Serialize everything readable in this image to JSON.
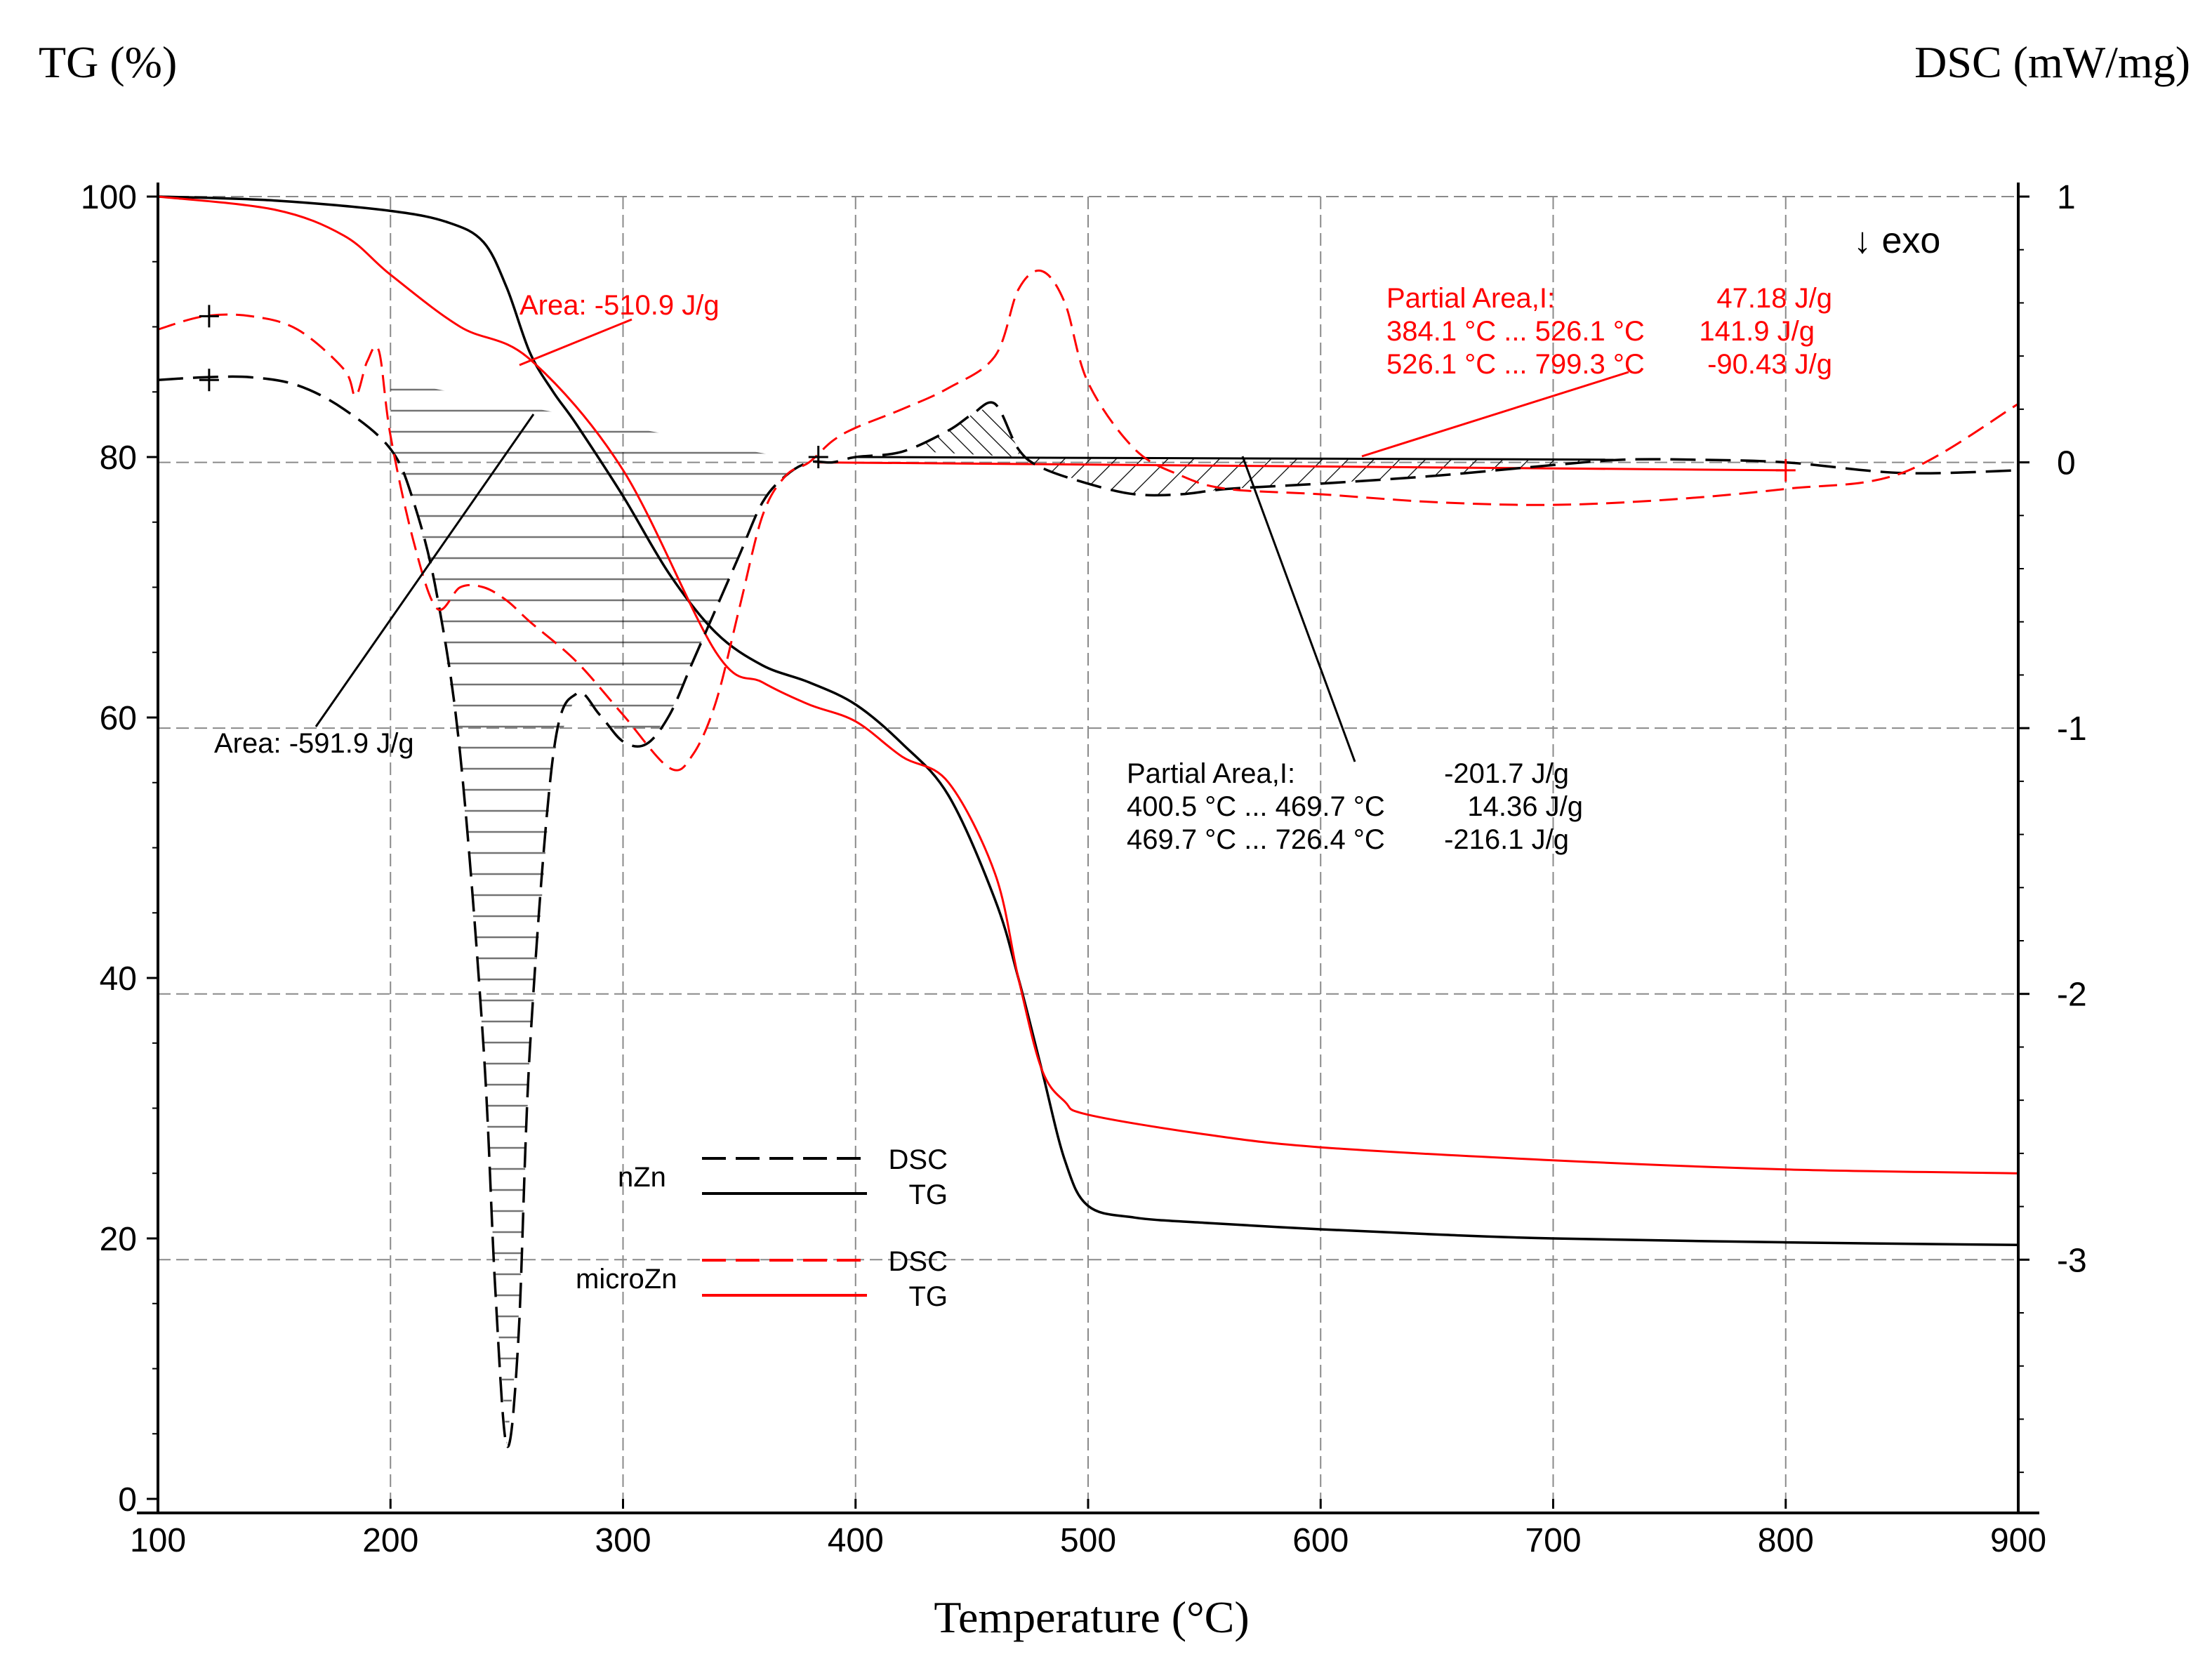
{
  "chart_data": {
    "type": "line",
    "title": "",
    "xlabel": "Temperature (°C)",
    "ylabel_left": "TG (%)",
    "ylabel_right": "DSC (mW/mg)",
    "x_ticks": [
      "100",
      "200",
      "300",
      "400",
      "500",
      "600",
      "700",
      "800",
      "900"
    ],
    "y_left_ticks": [
      "100",
      "80",
      "60",
      "40",
      "20",
      "0"
    ],
    "y_right_ticks": [
      "1",
      "0",
      "-1",
      "-2",
      "-3"
    ],
    "xlim": [
      100,
      900
    ],
    "ylim_left": [
      0,
      100
    ],
    "ylim_right": [
      -3.9,
      1.0
    ],
    "grid": true,
    "exo_label": "↓ exo",
    "colors": {
      "nZn": "#000000",
      "microZn": "#ff0000",
      "grid": "#8a8a8a"
    },
    "legend": {
      "groups": [
        {
          "name": "nZn",
          "entries": [
            {
              "label": "DSC",
              "style": "dashed"
            },
            {
              "label": "TG",
              "style": "solid"
            }
          ]
        },
        {
          "name": "microZn",
          "entries": [
            {
              "label": "DSC",
              "style": "dashed"
            },
            {
              "label": "TG",
              "style": "solid"
            }
          ]
        }
      ]
    },
    "annotations": {
      "area_red": "Area: -510.9 J/g",
      "area_black": "Area: -591.9 J/g",
      "partial_red": [
        "Partial Area,I:",
        "47.18 J/g",
        "384.1 °C ... 526.1 °C",
        "141.9 J/g",
        "526.1 °C ... 799.3 °C",
        "-90.43 J/g"
      ],
      "partial_black": [
        "Partial Area,I:",
        "-201.7 J/g",
        "400.5 °C ... 469.7 °C",
        "14.36 J/g",
        "469.7 °C ... 726.4 °C",
        "-216.1 J/g"
      ]
    },
    "series": [
      {
        "name": "nZn TG",
        "axis": "left",
        "style": "solid",
        "color": "#000000",
        "x": [
          100,
          150,
          200,
          225,
          240,
          250,
          260,
          270,
          280,
          300,
          320,
          340,
          360,
          380,
          400,
          420,
          440,
          460,
          470,
          480,
          490,
          500,
          520,
          550,
          600,
          650,
          700,
          800,
          900
        ],
        "y": [
          100,
          99.7,
          98.9,
          98,
          96.5,
          93,
          88,
          85,
          82.5,
          77,
          71,
          66.5,
          64,
          62.7,
          61,
          58,
          54,
          46,
          40,
          33,
          26,
          22.5,
          21.6,
          21.2,
          20.7,
          20.3,
          20,
          19.7,
          19.5
        ]
      },
      {
        "name": "microZn TG",
        "axis": "left",
        "style": "solid",
        "color": "#ff0000",
        "x": [
          100,
          150,
          180,
          200,
          230,
          260,
          300,
          340,
          360,
          380,
          400,
          420,
          440,
          460,
          470,
          480,
          490,
          500,
          550,
          600,
          700,
          800,
          900
        ],
        "y": [
          100,
          99,
          97,
          94,
          90,
          87.5,
          79,
          65,
          62.7,
          61,
          59.7,
          57,
          55,
          48,
          40,
          33,
          30.5,
          29.5,
          28,
          27,
          26,
          25.3,
          25
        ]
      },
      {
        "name": "nZn DSC",
        "axis": "right",
        "style": "dashed",
        "color": "#000000",
        "x": [
          100,
          120,
          140,
          160,
          180,
          200,
          210,
          220,
          230,
          240,
          245,
          250,
          255,
          260,
          270,
          280,
          290,
          300,
          310,
          320,
          330,
          340,
          350,
          360,
          370,
          380,
          390,
          400,
          420,
          440,
          450,
          460,
          470,
          480,
          500,
          520,
          540,
          560,
          600,
          650,
          700,
          730,
          760,
          800,
          850,
          900
        ],
        "y": [
          0.31,
          0.32,
          0.32,
          0.29,
          0.2,
          0.05,
          -0.15,
          -0.5,
          -1.1,
          -2.2,
          -3.1,
          -3.7,
          -3.3,
          -2.2,
          -1.1,
          -0.87,
          -0.95,
          -1.05,
          -1.06,
          -0.95,
          -0.75,
          -0.55,
          -0.35,
          -0.15,
          -0.05,
          0.0,
          0.0,
          0.02,
          0.04,
          0.12,
          0.18,
          0.22,
          0.05,
          -0.02,
          -0.08,
          -0.12,
          -0.12,
          -0.1,
          -0.08,
          -0.05,
          -0.01,
          0.01,
          0.01,
          0.0,
          -0.04,
          -0.03
        ]
      },
      {
        "name": "microZn DSC",
        "axis": "right",
        "style": "dashed",
        "color": "#ff0000",
        "x": [
          100,
          120,
          140,
          160,
          180,
          185,
          190,
          195,
          200,
          210,
          220,
          230,
          240,
          250,
          260,
          280,
          300,
          320,
          330,
          340,
          350,
          360,
          370,
          380,
          390,
          400,
          420,
          440,
          460,
          470,
          480,
          490,
          500,
          520,
          540,
          560,
          600,
          650,
          700,
          750,
          800,
          850,
          900
        ],
        "y": [
          0.5,
          0.55,
          0.55,
          0.5,
          0.35,
          0.25,
          0.38,
          0.42,
          0.1,
          -0.3,
          -0.55,
          -0.47,
          -0.47,
          -0.52,
          -0.6,
          -0.75,
          -0.95,
          -1.15,
          -1.1,
          -0.9,
          -0.55,
          -0.2,
          -0.05,
          0.0,
          0.08,
          0.13,
          0.2,
          0.28,
          0.4,
          0.65,
          0.72,
          0.6,
          0.3,
          0.05,
          -0.05,
          -0.1,
          -0.12,
          -0.15,
          -0.16,
          -0.14,
          -0.1,
          -0.04,
          0.22
        ]
      }
    ]
  }
}
